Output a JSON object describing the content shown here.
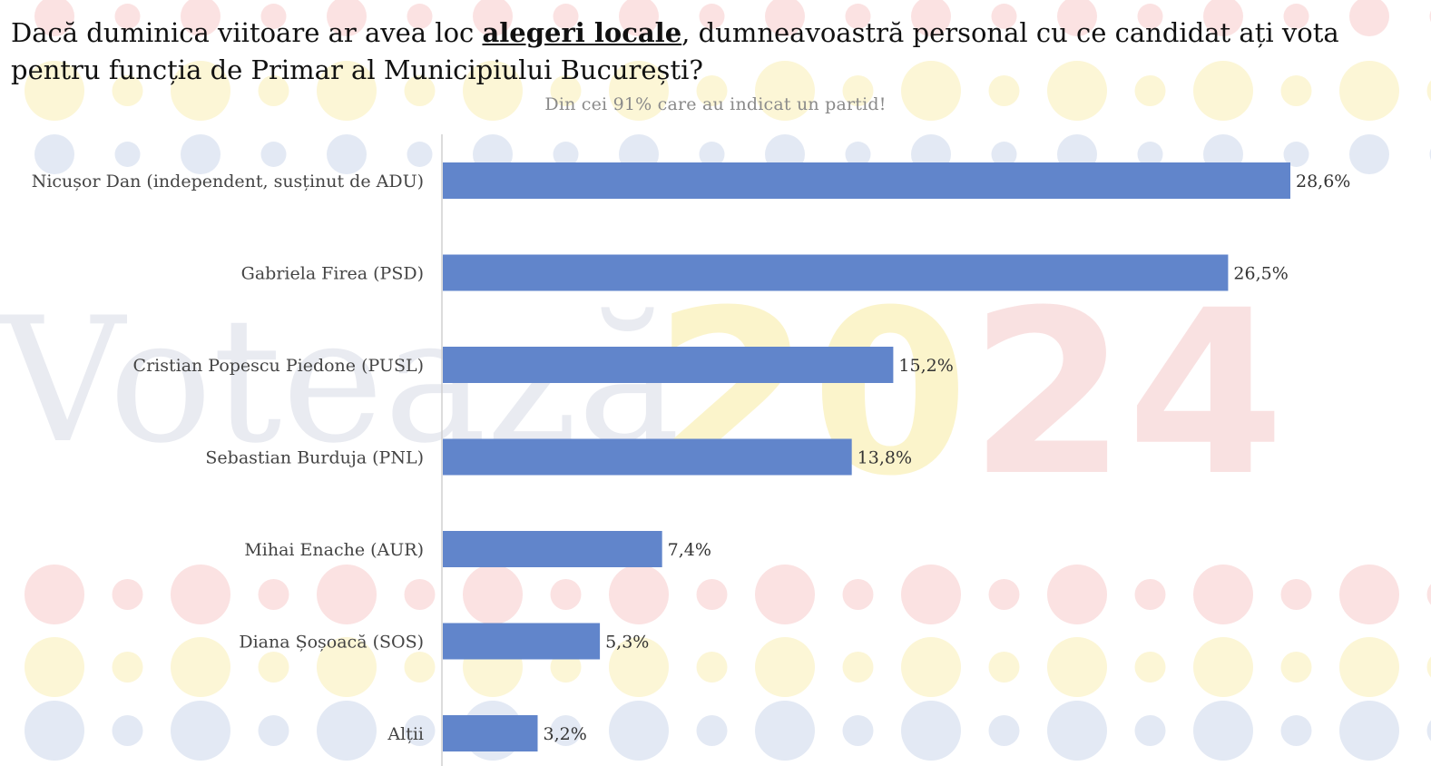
{
  "header": {
    "title_before": "Dacă duminica viitoare ar avea loc ",
    "title_emphasis": "alegeri locale",
    "title_after": ", dumneavoastră personal cu ce candidat ați vota pentru funcția de Primar al Municipiului București?",
    "subtitle": "Din cei 91% care au indicat un partid!"
  },
  "watermark": {
    "word": "Votează",
    "year": "2024",
    "colors": {
      "word": "#e9ebf1",
      "year_yellow": "#fbf3c6",
      "year_red": "#f9dede"
    }
  },
  "colors": {
    "bar": "#6185cb",
    "axis": "#d0d0d0",
    "dot_red": "#fbe2e2",
    "dot_yellow": "#fcf6d6",
    "dot_blue": "#e3e9f4"
  },
  "chart_data": {
    "type": "bar",
    "orientation": "horizontal",
    "categories": [
      "Nicușor Dan (independent, susținut de ADU)",
      "Gabriela Firea (PSD)",
      "Cristian Popescu Piedone (PUSL)",
      "Sebastian Burduja (PNL)",
      "Mihai Enache (AUR)",
      "Diana Șoșoacă (SOS)",
      "Alții"
    ],
    "values": [
      28.6,
      26.5,
      15.2,
      13.8,
      7.4,
      5.3,
      3.2
    ],
    "value_labels": [
      "28,6%",
      "26,5%",
      "15,2%",
      "13,8%",
      "7,4%",
      "5,3%",
      "3,2%"
    ],
    "xlim": [
      0,
      30
    ],
    "grid": false,
    "legend": "none"
  }
}
